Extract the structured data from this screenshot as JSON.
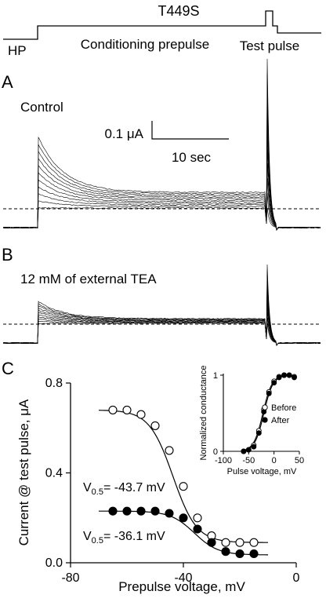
{
  "figure": {
    "protocol": {
      "construct": "T449S",
      "hp_label": "HP",
      "conditioning_label": "Conditioning prepulse",
      "test_label": "Test pulse"
    },
    "panels": {
      "a": "A",
      "b": "B",
      "c": "C"
    },
    "panel_a": {
      "condition_label": "Control",
      "scalebar_current": "0.1 μA",
      "scalebar_time": "10 sec"
    },
    "panel_b": {
      "condition_label": "12  mM of external TEA"
    },
    "panel_c": {
      "v_half_before_label": "V",
      "v_half_before_sub": "0.5",
      "v_half_before_value": "= -43.7 mV",
      "v_half_after_label": "V",
      "v_half_after_sub": "0.5",
      "v_half_after_value": "= -36.1 mV"
    },
    "colors": {
      "ink": "#000000",
      "background": "#ffffff"
    }
  },
  "chart_data": [
    {
      "type": "scatter",
      "xlabel": "Prepulse voltage, mV",
      "ylabel": "Current @ test pulse, μA",
      "xlim": [
        -80,
        0
      ],
      "ylim": [
        0.0,
        0.8
      ],
      "x_ticks": [
        "-80",
        "-40",
        "0"
      ],
      "y_ticks": [
        "0.0",
        "0.4",
        "0.8"
      ],
      "series": [
        {
          "marker": "open-circle",
          "x": [
            -65,
            -60,
            -55,
            -50,
            -45,
            -40,
            -35,
            -30,
            -25,
            -20,
            -15
          ],
          "y": [
            0.68,
            0.68,
            0.66,
            0.61,
            0.5,
            0.34,
            0.2,
            0.12,
            0.09,
            0.09,
            0.09
          ],
          "fit": {
            "top": 0.68,
            "bottom": 0.09,
            "v_half": -43.7,
            "slope": 4.2,
            "x_range": [
              -70,
              -10
            ]
          }
        },
        {
          "marker": "filled-circle",
          "x": [
            -65,
            -60,
            -55,
            -50,
            -45,
            -40,
            -35,
            -30,
            -25,
            -20,
            -15
          ],
          "y": [
            0.23,
            0.23,
            0.23,
            0.23,
            0.22,
            0.2,
            0.15,
            0.09,
            0.05,
            0.04,
            0.04
          ],
          "fit": {
            "top": 0.23,
            "bottom": 0.035,
            "v_half": -36.1,
            "slope": 4.2,
            "x_range": [
              -70,
              -10
            ]
          }
        }
      ]
    },
    {
      "type": "scatter",
      "xlabel": "Pulse voltage, mV",
      "ylabel": "Normalized conductance",
      "xlim": [
        -100,
        50
      ],
      "ylim": [
        0,
        1
      ],
      "x_ticks": [
        "-100",
        "-50",
        "0",
        "50"
      ],
      "y_ticks": [
        "0",
        "1"
      ],
      "legend_position": "right",
      "series": [
        {
          "name": "Before",
          "marker": "open-circle",
          "x": [
            -60,
            -50,
            -40,
            -30,
            -20,
            -10,
            0,
            10,
            20,
            30,
            40
          ],
          "y": [
            0.0,
            0.02,
            0.08,
            0.27,
            0.55,
            0.78,
            0.92,
            0.98,
            1.0,
            1.0,
            0.98
          ],
          "fit": {
            "v_half": -22,
            "slope": 9
          }
        },
        {
          "name": "After",
          "marker": "filled-circle",
          "x": [
            -60,
            -50,
            -40,
            -30,
            -20,
            -10,
            0,
            10,
            20,
            30,
            40
          ],
          "y": [
            0.0,
            0.02,
            0.06,
            0.24,
            0.52,
            0.76,
            0.9,
            0.97,
            1.0,
            1.0,
            0.97
          ],
          "fit": {
            "v_half": -20,
            "slope": 9
          }
        }
      ]
    }
  ]
}
